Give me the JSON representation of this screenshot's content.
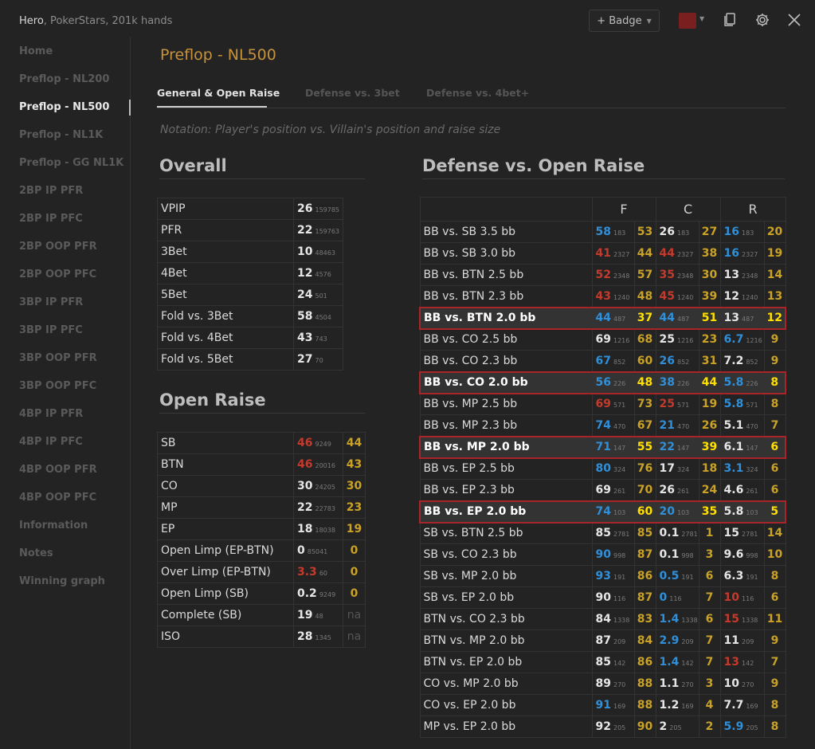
{
  "window": {
    "user": "Hero",
    "subtitle": ", PokerStars, 201k hands",
    "badge_label": "+ Badge",
    "badge_color": "#7a1f1f"
  },
  "sidebar": {
    "items": [
      "Home",
      "Preflop - NL200",
      "Preflop - NL500",
      "Preflop - NL1K",
      "Preflop - GG NL1K",
      "2BP IP PFR",
      "2BP IP PFC",
      "2BP OOP PFR",
      "2BP OOP PFC",
      "3BP IP PFR",
      "3BP IP PFC",
      "3BP OOP PFR",
      "3BP OOP PFC",
      "4BP IP PFR",
      "4BP IP PFC",
      "4BP OOP PFR",
      "4BP OOP PFC",
      "Information",
      "Notes",
      "Winning graph"
    ],
    "active_index": 2
  },
  "main": {
    "title": "Preflop - NL500",
    "tabs": [
      "General & Open Raise",
      "Defense vs. 3bet",
      "Defense vs. 4bet+"
    ],
    "active_tab": 0,
    "notation": "Notation: Player's position vs. Villain's position and raise size"
  },
  "overall": {
    "title": "Overall",
    "rows": [
      {
        "label": "VPIP",
        "value": "26",
        "count": "159785"
      },
      {
        "label": "PFR",
        "value": "22",
        "count": "159763"
      },
      {
        "label": "3Bet",
        "value": "10",
        "count": "48463"
      },
      {
        "label": "4Bet",
        "value": "12",
        "count": "4576"
      },
      {
        "label": "5Bet",
        "value": "24",
        "count": "501"
      },
      {
        "label": "Fold vs. 3Bet",
        "value": "58",
        "count": "4504"
      },
      {
        "label": "Fold vs. 4Bet",
        "value": "43",
        "count": "743"
      },
      {
        "label": "Fold vs. 5Bet",
        "value": "27",
        "count": "70"
      }
    ]
  },
  "open_raise": {
    "title": "Open Raise",
    "rows": [
      {
        "label": "SB",
        "value": "46",
        "count": "9249",
        "color": "red",
        "ref": "44"
      },
      {
        "label": "BTN",
        "value": "46",
        "count": "20016",
        "color": "red",
        "ref": "43"
      },
      {
        "label": "CO",
        "value": "30",
        "count": "24205",
        "color": "white",
        "ref": "30"
      },
      {
        "label": "MP",
        "value": "22",
        "count": "22783",
        "color": "white",
        "ref": "23"
      },
      {
        "label": "EP",
        "value": "18",
        "count": "18038",
        "color": "white",
        "ref": "19"
      },
      {
        "label": "Open Limp (EP-BTN)",
        "value": "0",
        "count": "85041",
        "color": "white",
        "ref": "0"
      },
      {
        "label": "Over Limp (EP-BTN)",
        "value": "3.3",
        "count": "60",
        "color": "red",
        "ref": "0"
      },
      {
        "label": "Open Limp (SB)",
        "value": "0.2",
        "count": "9249",
        "color": "white",
        "ref": "0"
      },
      {
        "label": "Complete (SB)",
        "value": "19",
        "count": "48",
        "color": "white",
        "ref": "na"
      },
      {
        "label": "ISO",
        "value": "28",
        "count": "1345",
        "color": "white",
        "ref": "na"
      }
    ]
  },
  "defense": {
    "title": "Defense vs. Open Raise",
    "headers": [
      "F",
      "C",
      "R"
    ],
    "rows": [
      {
        "label": "BB vs. SB 3.5 bb",
        "f": "58",
        "fn": "183",
        "fc": "blue",
        "fr": "53",
        "c": "26",
        "cn": "183",
        "cc": "white",
        "cr": "27",
        "r": "16",
        "rn": "183",
        "rc": "blue",
        "rr": "20",
        "hl": false
      },
      {
        "label": "BB vs. SB 3.0 bb",
        "f": "41",
        "fn": "2327",
        "fc": "red",
        "fr": "44",
        "c": "44",
        "cn": "2327",
        "cc": "red",
        "cr": "38",
        "r": "16",
        "rn": "2327",
        "rc": "blue",
        "rr": "19",
        "hl": false
      },
      {
        "label": "BB vs. BTN 2.5 bb",
        "f": "52",
        "fn": "2348",
        "fc": "red",
        "fr": "57",
        "c": "35",
        "cn": "2348",
        "cc": "red",
        "cr": "30",
        "r": "13",
        "rn": "2348",
        "rc": "white",
        "rr": "14",
        "hl": false
      },
      {
        "label": "BB vs. BTN 2.3 bb",
        "f": "43",
        "fn": "1240",
        "fc": "red",
        "fr": "48",
        "c": "45",
        "cn": "1240",
        "cc": "red",
        "cr": "39",
        "r": "12",
        "rn": "1240",
        "rc": "white",
        "rr": "13",
        "hl": false
      },
      {
        "label": "BB vs. BTN 2.0 bb",
        "f": "44",
        "fn": "487",
        "fc": "blue",
        "fr": "37",
        "c": "44",
        "cn": "487",
        "cc": "blue",
        "cr": "51",
        "r": "13",
        "rn": "487",
        "rc": "white",
        "rr": "12",
        "hl": true
      },
      {
        "label": "BB vs. CO 2.5 bb",
        "f": "69",
        "fn": "1216",
        "fc": "white",
        "fr": "68",
        "c": "25",
        "cn": "1216",
        "cc": "white",
        "cr": "23",
        "r": "6.7",
        "rn": "1216",
        "rc": "blue",
        "rr": "9",
        "hl": false
      },
      {
        "label": "BB vs. CO 2.3 bb",
        "f": "67",
        "fn": "852",
        "fc": "blue",
        "fr": "60",
        "c": "26",
        "cn": "852",
        "cc": "blue",
        "cr": "31",
        "r": "7.2",
        "rn": "852",
        "rc": "white",
        "rr": "9",
        "hl": false
      },
      {
        "label": "BB vs. CO 2.0 bb",
        "f": "56",
        "fn": "226",
        "fc": "blue",
        "fr": "48",
        "c": "38",
        "cn": "226",
        "cc": "blue",
        "cr": "44",
        "r": "5.8",
        "rn": "226",
        "rc": "blue",
        "rr": "8",
        "hl": true
      },
      {
        "label": "BB vs. MP 2.5 bb",
        "f": "69",
        "fn": "571",
        "fc": "red",
        "fr": "73",
        "c": "25",
        "cn": "571",
        "cc": "red",
        "cr": "19",
        "r": "5.8",
        "rn": "571",
        "rc": "blue",
        "rr": "8",
        "hl": false
      },
      {
        "label": "BB vs. MP 2.3 bb",
        "f": "74",
        "fn": "470",
        "fc": "blue",
        "fr": "67",
        "c": "21",
        "cn": "470",
        "cc": "blue",
        "cr": "26",
        "r": "5.1",
        "rn": "470",
        "rc": "white",
        "rr": "7",
        "hl": false
      },
      {
        "label": "BB vs. MP 2.0 bb",
        "f": "71",
        "fn": "147",
        "fc": "blue",
        "fr": "55",
        "c": "22",
        "cn": "147",
        "cc": "blue",
        "cr": "39",
        "r": "6.1",
        "rn": "147",
        "rc": "white",
        "rr": "6",
        "hl": true
      },
      {
        "label": "BB vs. EP 2.5 bb",
        "f": "80",
        "fn": "324",
        "fc": "blue",
        "fr": "76",
        "c": "17",
        "cn": "324",
        "cc": "white",
        "cr": "18",
        "r": "3.1",
        "rn": "324",
        "rc": "blue",
        "rr": "6",
        "hl": false
      },
      {
        "label": "BB vs. EP 2.3 bb",
        "f": "69",
        "fn": "261",
        "fc": "white",
        "fr": "70",
        "c": "26",
        "cn": "261",
        "cc": "white",
        "cr": "24",
        "r": "4.6",
        "rn": "261",
        "rc": "white",
        "rr": "6",
        "hl": false
      },
      {
        "label": "BB vs. EP 2.0 bb",
        "f": "74",
        "fn": "103",
        "fc": "blue",
        "fr": "60",
        "c": "20",
        "cn": "103",
        "cc": "blue",
        "cr": "35",
        "r": "5.8",
        "rn": "103",
        "rc": "white",
        "rr": "5",
        "hl": true
      },
      {
        "label": "SB vs. BTN 2.5 bb",
        "f": "85",
        "fn": "2781",
        "fc": "white",
        "fr": "85",
        "c": "0.1",
        "cn": "2781",
        "cc": "white",
        "cr": "1",
        "r": "15",
        "rn": "2781",
        "rc": "white",
        "rr": "14",
        "hl": false
      },
      {
        "label": "SB vs. CO 2.3 bb",
        "f": "90",
        "fn": "998",
        "fc": "blue",
        "fr": "87",
        "c": "0.1",
        "cn": "998",
        "cc": "white",
        "cr": "3",
        "r": "9.6",
        "rn": "998",
        "rc": "white",
        "rr": "10",
        "hl": false
      },
      {
        "label": "SB vs. MP 2.0 bb",
        "f": "93",
        "fn": "191",
        "fc": "blue",
        "fr": "86",
        "c": "0.5",
        "cn": "191",
        "cc": "blue",
        "cr": "6",
        "r": "6.3",
        "rn": "191",
        "rc": "white",
        "rr": "8",
        "hl": false
      },
      {
        "label": "SB vs. EP 2.0 bb",
        "f": "90",
        "fn": "116",
        "fc": "white",
        "fr": "87",
        "c": "0",
        "cn": "116",
        "cc": "blue",
        "cr": "7",
        "r": "10",
        "rn": "116",
        "rc": "red",
        "rr": "6",
        "hl": false
      },
      {
        "label": "BTN vs. CO 2.3 bb",
        "f": "84",
        "fn": "1338",
        "fc": "white",
        "fr": "83",
        "c": "1.4",
        "cn": "1338",
        "cc": "blue",
        "cr": "6",
        "r": "15",
        "rn": "1338",
        "rc": "red",
        "rr": "11",
        "hl": false
      },
      {
        "label": "BTN vs. MP 2.0 bb",
        "f": "87",
        "fn": "209",
        "fc": "white",
        "fr": "84",
        "c": "2.9",
        "cn": "209",
        "cc": "blue",
        "cr": "7",
        "r": "11",
        "rn": "209",
        "rc": "white",
        "rr": "9",
        "hl": false
      },
      {
        "label": "BTN vs. EP 2.0 bb",
        "f": "85",
        "fn": "142",
        "fc": "white",
        "fr": "86",
        "c": "1.4",
        "cn": "142",
        "cc": "blue",
        "cr": "7",
        "r": "13",
        "rn": "142",
        "rc": "red",
        "rr": "7",
        "hl": false
      },
      {
        "label": "CO vs. MP 2.0 bb",
        "f": "89",
        "fn": "270",
        "fc": "white",
        "fr": "88",
        "c": "1.1",
        "cn": "270",
        "cc": "white",
        "cr": "3",
        "r": "10",
        "rn": "270",
        "rc": "white",
        "rr": "9",
        "hl": false
      },
      {
        "label": "CO vs. EP 2.0 bb",
        "f": "91",
        "fn": "169",
        "fc": "blue",
        "fr": "88",
        "c": "1.2",
        "cn": "169",
        "cc": "white",
        "cr": "4",
        "r": "7.7",
        "rn": "169",
        "rc": "white",
        "rr": "8",
        "hl": false
      },
      {
        "label": "MP vs. EP 2.0 bb",
        "f": "92",
        "fn": "205",
        "fc": "white",
        "fr": "90",
        "c": "2",
        "cn": "205",
        "cc": "white",
        "cr": "2",
        "r": "5.9",
        "rn": "205",
        "rc": "blue",
        "rr": "8",
        "hl": false
      }
    ]
  },
  "colors": {
    "accent_title": "#c7923a",
    "blue": "#2f8fd8",
    "red": "#c43a2c",
    "yellow": "#c9a227",
    "highlight_border": "#a8252a"
  },
  "icons": [
    "chevron-down-icon",
    "copy-icon",
    "gear-icon",
    "close-icon"
  ]
}
